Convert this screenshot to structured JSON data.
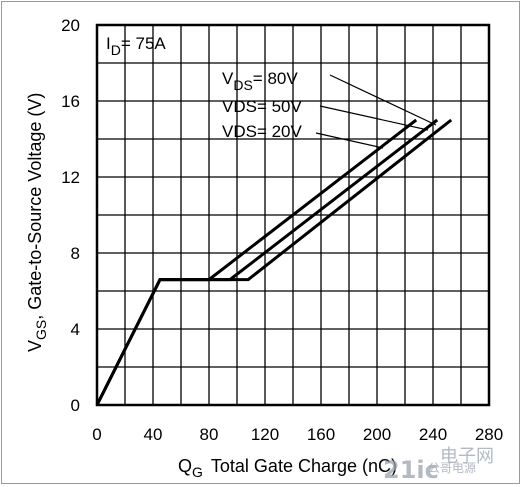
{
  "chart_data": {
    "type": "line",
    "xlabel": {
      "main": "Q",
      "sub": "G",
      "rest": "Total Gate Charge (nC)"
    },
    "ylabel": {
      "main": "V",
      "sub": "GS",
      "rest": ", Gate-to-Source Voltage (V)"
    },
    "xlim": [
      0,
      280
    ],
    "ylim": [
      0,
      20
    ],
    "x_ticks": [
      0,
      40,
      80,
      120,
      160,
      200,
      240,
      280
    ],
    "y_ticks": [
      0,
      4,
      8,
      12,
      16,
      20
    ],
    "grid": true,
    "annotations": {
      "id_label": {
        "main": "I",
        "sub": "D",
        "rest": "= 75A"
      },
      "vds80": {
        "main": "V",
        "sub": "DS",
        "rest": "= 80V"
      },
      "vds50": "VDS= 50V",
      "vds20": "VDS= 20V"
    },
    "series": [
      {
        "name": "VDS= 80V",
        "points": [
          [
            0,
            0
          ],
          [
            45,
            6.6
          ],
          [
            108,
            6.6
          ],
          [
            253,
            15
          ]
        ]
      },
      {
        "name": "VDS= 50V",
        "points": [
          [
            0,
            0
          ],
          [
            45,
            6.6
          ],
          [
            95,
            6.6
          ],
          [
            243,
            15
          ]
        ]
      },
      {
        "name": "VDS= 20V",
        "points": [
          [
            0,
            0
          ],
          [
            45,
            6.6
          ],
          [
            80,
            6.6
          ],
          [
            228,
            15
          ]
        ]
      }
    ]
  },
  "watermark": {
    "logo_text": "21ic",
    "cn_text": "电子网",
    "sub_text": "公哥电源"
  }
}
